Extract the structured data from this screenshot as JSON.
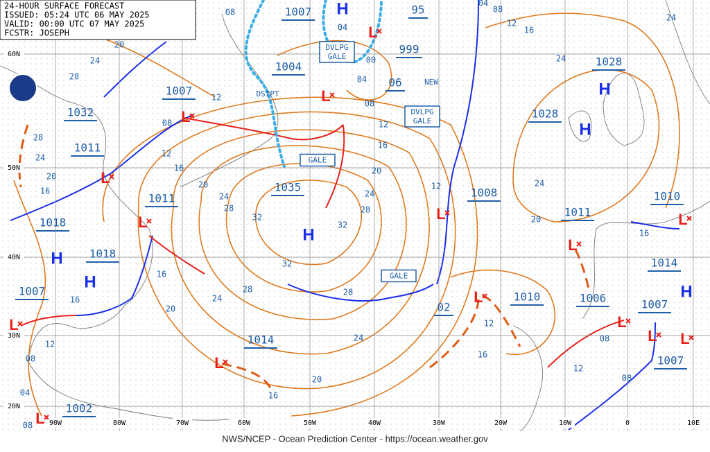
{
  "header": {
    "lines": [
      "24-HOUR SURFACE FORECAST",
      "ISSUED: 05:24 UTC 06 MAY 2025",
      "VALID:  00:00 UTC 07 MAY 2025",
      "FCSTR:  JOSEPH"
    ]
  },
  "footer": "NWS/NCEP - Ocean Prediction Center - https://ocean.weather.gov",
  "lat_labels": [
    "60N",
    "50N",
    "40N",
    "30N",
    "20N"
  ],
  "lon_labels": [
    "90W",
    "80W",
    "70W",
    "60W",
    "50W",
    "40W",
    "30W",
    "20W",
    "10W",
    "0",
    "10E"
  ],
  "highs": [
    "H",
    "H",
    "H",
    "H",
    "H",
    "H",
    "H"
  ],
  "lows": [
    "L",
    "L",
    "L",
    "L",
    "L",
    "L",
    "L",
    "L",
    "L",
    "L",
    "L",
    "L",
    "L",
    "L",
    "L"
  ],
  "pressure_labels": [
    "1007",
    "95",
    "999",
    "1004",
    "06",
    "1007",
    "1032",
    "1028",
    "1028",
    "1011",
    "1035",
    "1011",
    "1008",
    "1010",
    "1011",
    "1018",
    "1018",
    "1014",
    "1007",
    "1010",
    "1006",
    "02",
    "1007",
    "1014",
    "1007",
    "1002"
  ],
  "boxed_labels": [
    [
      "DVLPG",
      "GALE"
    ],
    [
      "DVLPG",
      "GALE"
    ],
    [
      "GALE"
    ],
    [
      "GALE"
    ]
  ],
  "notes": [
    "DSIPT",
    "NEW"
  ],
  "isobar_labels": [
    "08",
    "04",
    "00",
    "04",
    "08",
    "12",
    "16",
    "20",
    "24",
    "28",
    "32",
    "32",
    "32",
    "28",
    "28",
    "24",
    "24",
    "20",
    "16",
    "20",
    "16",
    "16",
    "12",
    "08",
    "04",
    "08",
    "20",
    "24",
    "28",
    "16",
    "12",
    "08",
    "12",
    "20",
    "24",
    "28",
    "28",
    "24",
    "20",
    "16",
    "12",
    "12",
    "16",
    "12",
    "08",
    "08",
    "16",
    "20",
    "24",
    "24",
    "16",
    "12",
    "08",
    "04",
    "24"
  ]
}
